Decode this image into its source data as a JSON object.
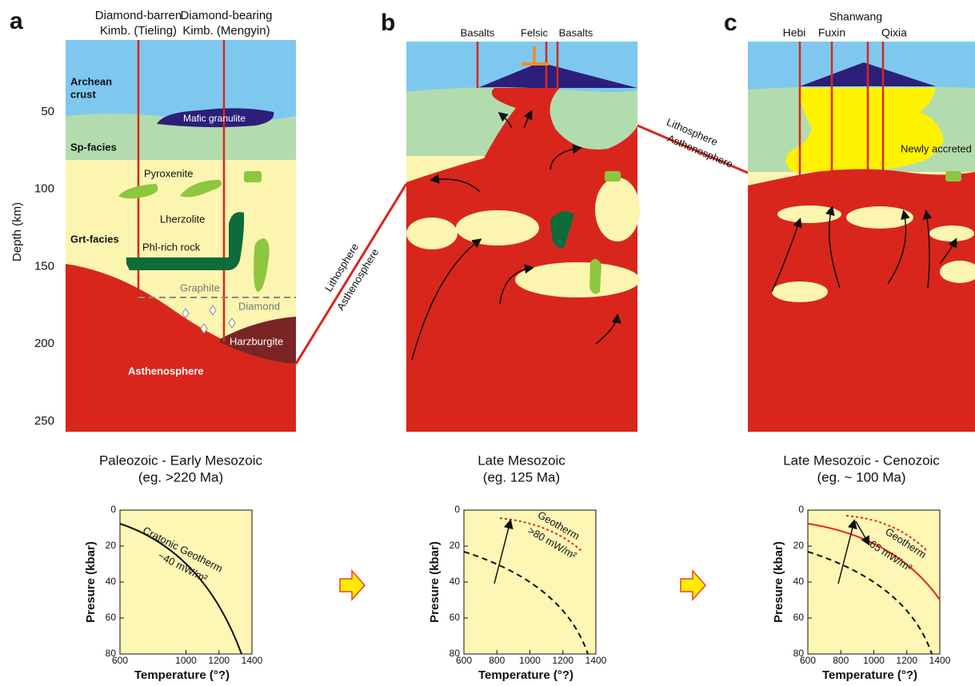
{
  "panels": [
    {
      "letter": "a",
      "well_labels": [
        "Diamond-barren",
        "Kimb. (Tieling)",
        "Diamond-bearing",
        "Kimb. (Mengyin)"
      ],
      "units": [
        "Archean",
        "crust",
        "Mafic granulite",
        "Sp-facies",
        "Pyroxenite",
        "Lherzolite",
        "Grt-facies",
        "Phl-rich rock",
        "Graphite",
        "Diamond",
        "Harzburgite",
        "Asthenosphere"
      ],
      "caption": [
        "Paleozoic - Early Mesozoic",
        "(eg. >220 Ma)"
      ]
    },
    {
      "letter": "b",
      "well_labels": [
        "Basalts",
        "Felsic",
        "Basalts"
      ],
      "caption": [
        "Late Mesozoic",
        "(eg. 125 Ma)"
      ]
    },
    {
      "letter": "c",
      "well_labels": [
        "Shanwang",
        "Hebi",
        "Fuxin",
        "Qixia"
      ],
      "units": [
        "Newly accreted"
      ],
      "caption": [
        "Late Mesozoic - Cenozoic",
        "(eg. ~ 100 Ma)"
      ]
    }
  ],
  "boundaries": [
    [
      "Lithosphere",
      "Asthenosphere"
    ],
    [
      "Lithosphere",
      "Asthenosphere"
    ]
  ],
  "depth_axis": {
    "label": "Depth (km)",
    "ticks": [
      50,
      100,
      150,
      200,
      250
    ]
  },
  "pt_plots": [
    {
      "ylabel": "Presure (kbar)",
      "xlabel": "Temperature (°?)",
      "xticks": [
        600,
        1000,
        1200,
        1400
      ],
      "yticks": [
        0,
        20,
        40,
        60,
        80
      ],
      "annotations": [
        "Cratonic Geotherm",
        "~40 mW/m²"
      ]
    },
    {
      "ylabel": "Presure (kbar)",
      "xlabel": "Temperature (°?)",
      "xticks": [
        600,
        800,
        1000,
        1200,
        1400
      ],
      "yticks": [
        0,
        20,
        40,
        60,
        80
      ],
      "annotations": [
        "Geotherm",
        ">80 mW/m²"
      ]
    },
    {
      "ylabel": "Presure (kbar)",
      "xlabel": "Temperature (°?)",
      "xticks": [
        600,
        800,
        1000,
        1200,
        1400
      ],
      "yticks": [
        0,
        20,
        40,
        60,
        80
      ],
      "annotations": [
        "Geotherm",
        "~65 mW/m²"
      ]
    }
  ]
}
